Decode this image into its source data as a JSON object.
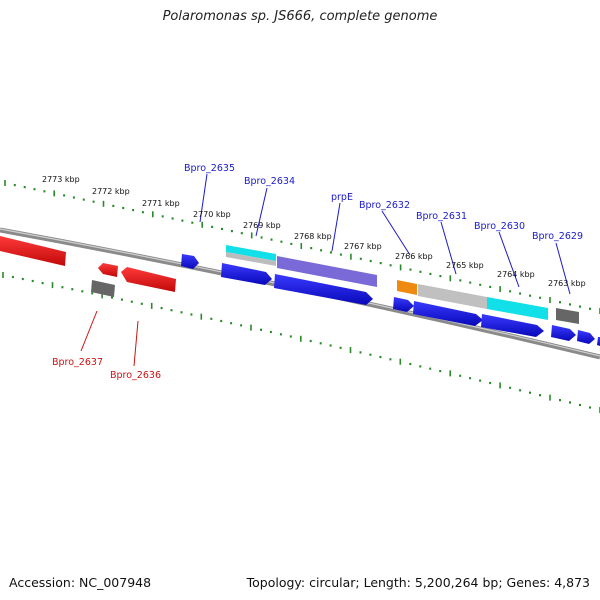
{
  "title": "Polaromonas sp. JS666, complete genome",
  "footer": {
    "accession": "Accession: NC_007948",
    "topology": "Topology: circular; Length: 5,200,264 bp; Genes: 4,873"
  },
  "scale_labels": [
    "2773 kbp",
    "2772 kbp",
    "2771 kbp",
    "2770 kbp",
    "2769 kbp",
    "2768 kbp",
    "2767 kbp",
    "2766 kbp",
    "2765 kbp",
    "2764 kbp",
    "2763 kbp"
  ],
  "gene_labels_top": [
    "Bpro_2635",
    "Bpro_2634",
    "prpE",
    "Bpro_2632",
    "Bpro_2631",
    "Bpro_2630",
    "Bpro_2629"
  ],
  "gene_labels_bottom": [
    "Bpro_2637",
    "Bpro_2636"
  ],
  "colors": {
    "backbone": "#8a8a8a",
    "tick": "#2a8a2a",
    "forward_gene": "#1010e0",
    "reverse_gene": "#ee1111",
    "cds_purple": "#7a6ad8",
    "cds_cyan": "#11e0e8",
    "cds_grey": "#bdbdbd",
    "cds_orange": "#ee8a10",
    "dark_grey": "#666666",
    "label_blue": "#1a1acc",
    "label_red": "#cc1111"
  }
}
